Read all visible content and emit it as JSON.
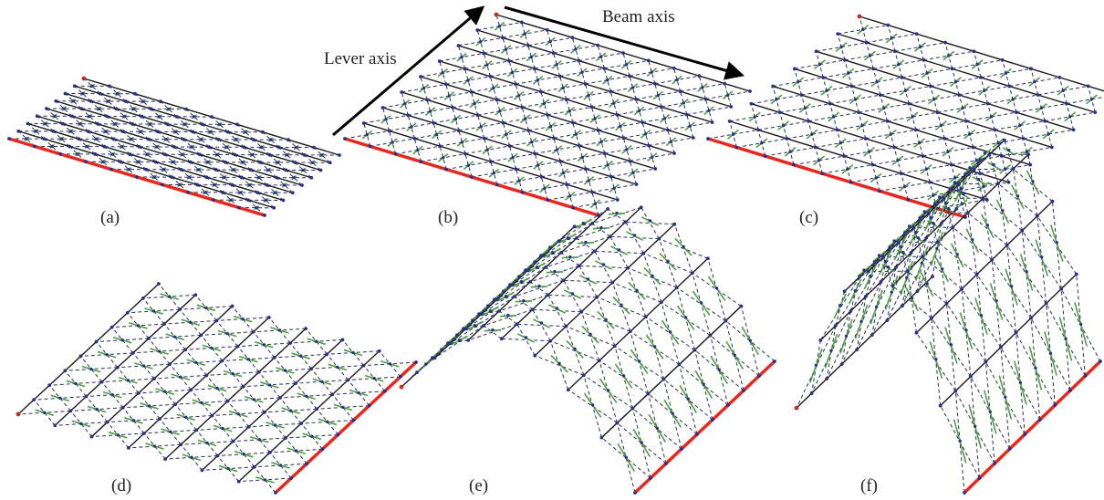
{
  "figure": {
    "panels": [
      {
        "id": "a",
        "label": "(a)"
      },
      {
        "id": "b",
        "label": "(b)"
      },
      {
        "id": "c",
        "label": "(c)"
      },
      {
        "id": "d",
        "label": "(d)"
      },
      {
        "id": "e",
        "label": "(e)"
      },
      {
        "id": "f",
        "label": "(f)"
      }
    ],
    "annotations": {
      "lever_axis": "Lever axis",
      "beam_axis": "Beam axis"
    },
    "colors": {
      "support": "#e8261e",
      "beam": "#1a1a1a",
      "dashed": "#2a2f55",
      "lever": "#4aa23c",
      "node": "#27318a",
      "node_end": "#b8322a",
      "arrow": "#000000",
      "text": "#222222"
    }
  }
}
